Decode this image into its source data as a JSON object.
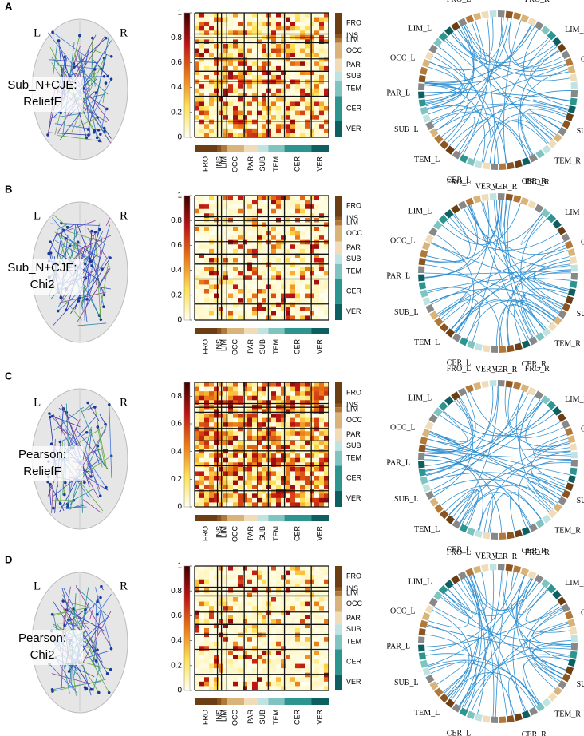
{
  "panels": [
    {
      "label": "A",
      "method": [
        "Sub_N+CJE:",
        "ReliefF"
      ],
      "colorbar_ticks": [
        0,
        0.2,
        0.4,
        0.6,
        0.8,
        1
      ],
      "colorbar_lim": [
        0,
        1
      ]
    },
    {
      "label": "B",
      "method": [
        "Sub_N+CJE:",
        "Chi2"
      ],
      "colorbar_ticks": [
        0,
        0.2,
        0.4,
        0.6,
        0.8,
        1
      ],
      "colorbar_lim": [
        0,
        1
      ]
    },
    {
      "label": "C",
      "method": [
        "Pearson:",
        "ReliefF"
      ],
      "colorbar_ticks": [
        0,
        0.2,
        0.4,
        0.6,
        0.8
      ],
      "colorbar_lim": [
        0,
        0.9
      ]
    },
    {
      "label": "D",
      "method": [
        "Pearson:",
        "Chi2"
      ],
      "colorbar_ticks": [
        0,
        0.2,
        0.4,
        0.6,
        0.8,
        1
      ],
      "colorbar_lim": [
        0,
        1
      ]
    }
  ],
  "brain_labels": [
    "L",
    "R"
  ],
  "regions": [
    "FRO",
    "INS",
    "LIM",
    "OCC",
    "PAR",
    "SUB",
    "TEM",
    "CER",
    "VER"
  ],
  "circle_labels": [
    "FRO_L",
    "FRO_R",
    "LIM_R",
    "OCC_R",
    "PAR_R",
    "SUB_R",
    "TEM_R",
    "CER_R",
    "VER_R",
    "VER_L",
    "CER_L",
    "TEM_L",
    "SUB_L",
    "PAR_L",
    "OCC_L",
    "LIM_L"
  ]
}
